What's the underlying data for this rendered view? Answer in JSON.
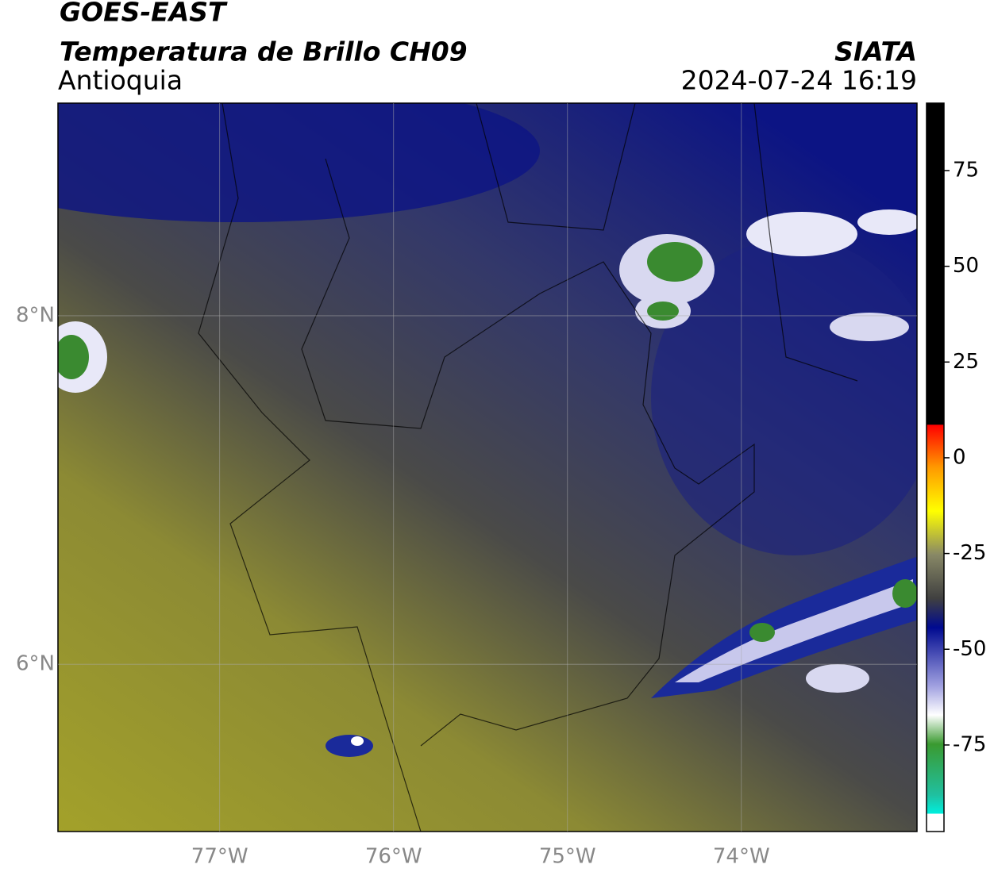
{
  "header": {
    "title": "GOES-EAST",
    "subtitle": "Temperatura de Brillo CH09",
    "region": "Antioquia",
    "source": "SIATA",
    "datetime": "2024-07-24 16:19"
  },
  "map": {
    "lon_range": [
      -77.93,
      -72.99
    ],
    "lat_range": [
      5.04,
      9.22
    ],
    "lon_ticks": [
      {
        "value": -77,
        "label": "77°W"
      },
      {
        "value": -76,
        "label": "76°W"
      },
      {
        "value": -75,
        "label": "75°W"
      },
      {
        "value": -74,
        "label": "74°W"
      }
    ],
    "lat_ticks": [
      {
        "value": 8,
        "label": "8°N"
      },
      {
        "value": 6,
        "label": "6°N"
      }
    ]
  },
  "colorbar": {
    "range": [
      -97.6,
      92.6
    ],
    "ticks": [
      75,
      50,
      25,
      0,
      -25,
      -50,
      -75
    ]
  }
}
